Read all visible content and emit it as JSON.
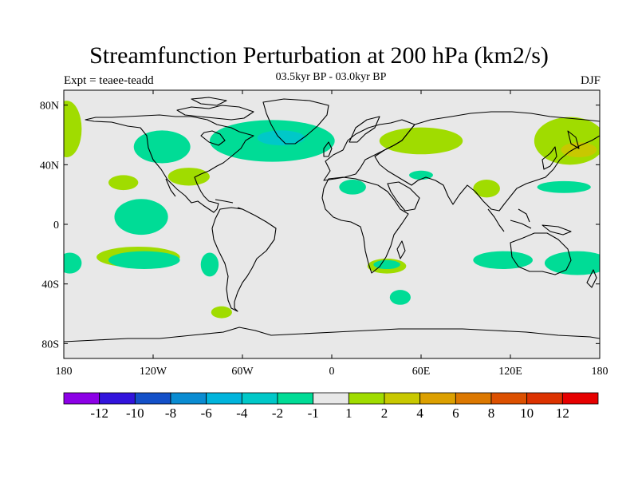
{
  "title": "Streamfunction Perturbation at 200 hPa (km2/s)",
  "left_label": "Expt = teaee-teadd",
  "center_label": "03.5kyr BP - 03.0kyr BP",
  "right_label": "DJF",
  "map": {
    "projection": "cylindrical-equidistant",
    "lon_range": [
      -180,
      180
    ],
    "lat_range": [
      -90,
      90
    ],
    "background_color": "#e8e8e8",
    "x_ticks": [
      {
        "lon": -180,
        "label": "180"
      },
      {
        "lon": -120,
        "label": "120W"
      },
      {
        "lon": -60,
        "label": "60W"
      },
      {
        "lon": 0,
        "label": "0"
      },
      {
        "lon": 60,
        "label": "60E"
      },
      {
        "lon": 120,
        "label": "120E"
      },
      {
        "lon": 180,
        "label": "180"
      }
    ],
    "y_ticks": [
      {
        "lat": 80,
        "label": "80N"
      },
      {
        "lat": 40,
        "label": "40N"
      },
      {
        "lat": 0,
        "label": "0"
      },
      {
        "lat": -40,
        "label": "40S"
      },
      {
        "lat": -80,
        "label": "80S"
      }
    ],
    "regions": [
      {
        "lon": -178,
        "lat": 64,
        "rlon": 10,
        "rlat": 19,
        "level": 2,
        "color": "#a0dc00"
      },
      {
        "lon": -114,
        "lat": 52,
        "rlon": 19,
        "rlat": 11,
        "level": -2,
        "color": "#00dc96"
      },
      {
        "lon": -96,
        "lat": 32,
        "rlon": 14,
        "rlat": 6,
        "level": 2,
        "color": "#a0dc00"
      },
      {
        "lon": -140,
        "lat": 28,
        "rlon": 10,
        "rlat": 5,
        "level": 2,
        "color": "#a0dc00"
      },
      {
        "lon": -40,
        "lat": 56,
        "rlon": 42,
        "rlat": 14,
        "level": -2,
        "color": "#00dc96"
      },
      {
        "lon": -34,
        "lat": 58,
        "rlon": 16,
        "rlat": 5,
        "level": -4,
        "color": "#00c8c8"
      },
      {
        "lon": 60,
        "lat": 56,
        "rlon": 28,
        "rlat": 9,
        "level": 2,
        "color": "#a0dc00"
      },
      {
        "lon": 60,
        "lat": 33,
        "rlon": 8,
        "rlat": 3,
        "level": -2,
        "color": "#00dc96"
      },
      {
        "lon": 14,
        "lat": 25,
        "rlon": 9,
        "rlat": 5,
        "level": -2,
        "color": "#00dc96"
      },
      {
        "lon": 104,
        "lat": 24,
        "rlon": 9,
        "rlat": 6,
        "level": 2,
        "color": "#a0dc00"
      },
      {
        "lon": 160,
        "lat": 56,
        "rlon": 24,
        "rlat": 16,
        "level": 2,
        "color": "#a0dc00"
      },
      {
        "lon": 166,
        "lat": 50,
        "rlon": 12,
        "rlat": 5,
        "level": 4,
        "color": "#c8c800"
      },
      {
        "lon": 156,
        "lat": 25,
        "rlon": 18,
        "rlat": 4,
        "level": -2,
        "color": "#00dc96"
      },
      {
        "lon": -128,
        "lat": 5,
        "rlon": 18,
        "rlat": 12,
        "level": -2,
        "color": "#00dc96"
      },
      {
        "lon": -130,
        "lat": -22,
        "rlon": 28,
        "rlat": 7,
        "level": 2,
        "color": "#a0dc00"
      },
      {
        "lon": -126,
        "lat": -24,
        "rlon": 24,
        "rlat": 6,
        "level": -2,
        "color": "#00dc96"
      },
      {
        "lon": -176,
        "lat": -26,
        "rlon": 8,
        "rlat": 7,
        "level": -2,
        "color": "#00dc96"
      },
      {
        "lon": -82,
        "lat": -27,
        "rlon": 6,
        "rlat": 8,
        "level": -2,
        "color": "#00dc96"
      },
      {
        "lon": -74,
        "lat": -59,
        "rlon": 7,
        "rlat": 4,
        "level": 2,
        "color": "#a0dc00"
      },
      {
        "lon": 37,
        "lat": -28,
        "rlon": 13,
        "rlat": 5,
        "level": 2,
        "color": "#a0dc00"
      },
      {
        "lon": 37,
        "lat": -27,
        "rlon": 9,
        "rlat": 3,
        "level": -2,
        "color": "#00dc96"
      },
      {
        "lon": 46,
        "lat": -49,
        "rlon": 7,
        "rlat": 5,
        "level": -2,
        "color": "#00dc96"
      },
      {
        "lon": 115,
        "lat": -24,
        "rlon": 20,
        "rlat": 6,
        "level": -2,
        "color": "#00dc96"
      },
      {
        "lon": 165,
        "lat": -26,
        "rlon": 22,
        "rlat": 8,
        "level": -2,
        "color": "#00dc96"
      }
    ]
  },
  "colorbar": {
    "colors": [
      "#8c00e6",
      "#3214dc",
      "#1450c8",
      "#0a8cd2",
      "#00b4dc",
      "#00c8c8",
      "#00dc96",
      "#e8e8e8",
      "#a0dc00",
      "#c8c800",
      "#dca000",
      "#dc7800",
      "#dc5000",
      "#dc3200",
      "#e60000"
    ],
    "labels": [
      "-12",
      "-10",
      "-8",
      "-6",
      "-4",
      "-2",
      "-1",
      "1",
      "2",
      "4",
      "6",
      "8",
      "10",
      "12"
    ]
  }
}
